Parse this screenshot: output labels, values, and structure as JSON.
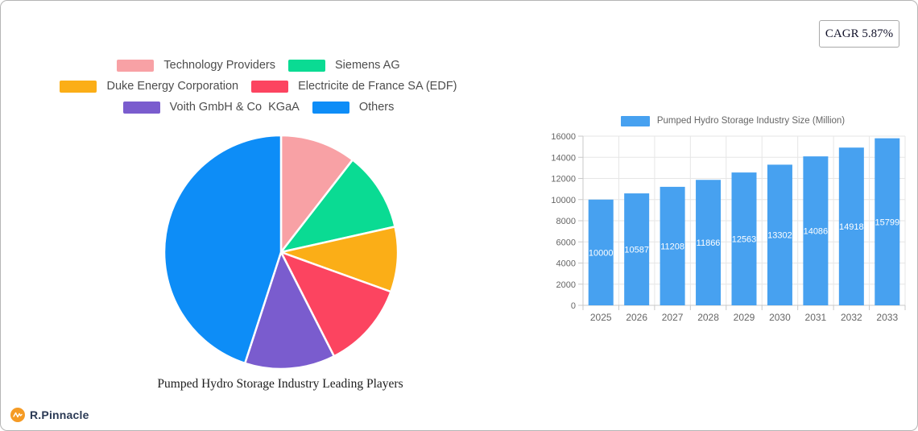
{
  "cagr_badge": "CAGR 5.87%",
  "logo": {
    "brand": "R.Pinnacle",
    "icon": "pulse-line-icon",
    "icon_color": "#F59B25",
    "text_color": "#2B3A55"
  },
  "chart_data": [
    {
      "type": "pie",
      "title": "Pumped Hydro Storage Industry Leading Players",
      "labels": [
        "Technology Providers",
        "Siemens AG",
        "Duke Energy Corporation",
        "Electricite de France SA (EDF)",
        "Voith GmbH & Co  KGaA",
        "Others"
      ],
      "values": [
        10.5,
        11,
        9,
        12,
        12.5,
        45
      ],
      "unit": "percent-share",
      "colors": [
        "#F8A1A5",
        "#0ADB93",
        "#FBAE17",
        "#FC4460",
        "#7A5CCE",
        "#0D8DF7"
      ],
      "start_angle": "top",
      "direction": "clockwise",
      "legend_position": "top",
      "slice_border_color": "#ffffff"
    },
    {
      "type": "bar",
      "legend_label": "Pumped Hydro Storage Industry Size (Million)",
      "categories": [
        "2025",
        "2026",
        "2027",
        "2028",
        "2029",
        "2030",
        "2031",
        "2032",
        "2033"
      ],
      "values": [
        10000,
        10587,
        11208,
        11866,
        12563,
        13302,
        14086,
        14918,
        15799
      ],
      "bar_color": "#47A1F0",
      "value_label_color": "#ffffff",
      "ylim": [
        0,
        16000
      ],
      "ytick_step": 2000,
      "grid": true,
      "grid_color": "#e6e6e6",
      "axis_color": "#c9c9c9",
      "tick_label_color": "#666666",
      "legend_position": "top"
    }
  ]
}
